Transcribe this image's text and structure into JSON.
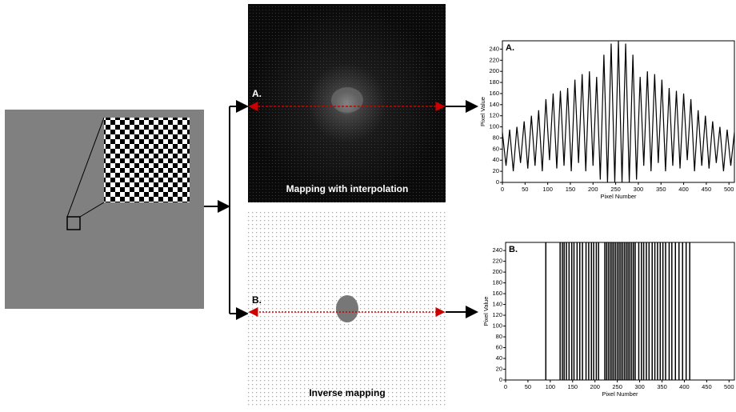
{
  "labels": {
    "top_panel": "A.",
    "top_caption": "Mapping with interpolation",
    "bottom_panel": "B.",
    "bottom_caption": "Inverse mapping"
  },
  "chart_data": [
    {
      "type": "line",
      "label": "A.",
      "x_label": "Pixel Number",
      "y_label": "Pixel Value",
      "color": "#000000",
      "x": [
        0,
        8,
        16,
        24,
        32,
        40,
        48,
        56,
        64,
        72,
        80,
        88,
        96,
        104,
        112,
        120,
        128,
        136,
        144,
        152,
        160,
        168,
        176,
        184,
        192,
        200,
        208,
        216,
        224,
        232,
        240,
        248,
        256,
        264,
        272,
        280,
        288,
        296,
        304,
        312,
        320,
        328,
        336,
        344,
        352,
        360,
        368,
        376,
        384,
        392,
        400,
        408,
        416,
        424,
        432,
        440,
        448,
        456,
        464,
        472,
        480,
        488,
        496,
        504,
        512
      ],
      "values": [
        90,
        30,
        95,
        20,
        100,
        35,
        110,
        25,
        120,
        30,
        130,
        20,
        150,
        40,
        160,
        25,
        165,
        30,
        170,
        20,
        185,
        35,
        195,
        20,
        200,
        30,
        190,
        5,
        230,
        0,
        250,
        0,
        255,
        0,
        250,
        0,
        230,
        5,
        190,
        30,
        200,
        20,
        195,
        35,
        185,
        20,
        170,
        30,
        165,
        25,
        160,
        40,
        150,
        20,
        130,
        30,
        120,
        25,
        110,
        35,
        100,
        20,
        95,
        30,
        90
      ],
      "xlim": [
        0,
        512
      ],
      "ylim": [
        0,
        255
      ],
      "xticks": [
        0,
        50,
        100,
        150,
        200,
        250,
        300,
        350,
        400,
        450,
        500
      ],
      "yticks": [
        0,
        20,
        40,
        60,
        80,
        100,
        120,
        140,
        160,
        180,
        200,
        220,
        240
      ]
    },
    {
      "type": "spike",
      "label": "B.",
      "x_label": "Pixel Number",
      "y_label": "Pixel Value",
      "color": "#000000",
      "x": [
        90,
        122,
        127,
        131,
        136,
        142,
        148,
        153,
        160,
        166,
        172,
        180,
        186,
        192,
        197,
        203,
        208,
        222,
        226,
        230,
        234,
        238,
        242,
        246,
        250,
        254,
        258,
        262,
        266,
        270,
        274,
        278,
        282,
        286,
        290,
        298,
        304,
        309,
        315,
        321,
        328,
        334,
        340,
        346,
        352,
        358,
        366,
        372,
        380,
        388,
        396,
        404,
        412
      ],
      "values": [
        255,
        255,
        255,
        255,
        255,
        255,
        255,
        255,
        255,
        255,
        255,
        255,
        255,
        255,
        255,
        255,
        255,
        255,
        255,
        255,
        255,
        255,
        255,
        255,
        255,
        255,
        255,
        255,
        255,
        255,
        255,
        255,
        255,
        255,
        255,
        255,
        255,
        255,
        255,
        255,
        255,
        255,
        255,
        255,
        255,
        255,
        255,
        255,
        255,
        255,
        255,
        255,
        255
      ],
      "xlim": [
        0,
        512
      ],
      "ylim": [
        0,
        255
      ],
      "xticks": [
        0,
        50,
        100,
        150,
        200,
        250,
        300,
        350,
        400,
        450,
        500
      ],
      "yticks": [
        0,
        20,
        40,
        60,
        80,
        100,
        120,
        140,
        160,
        180,
        200,
        220,
        240
      ]
    }
  ]
}
